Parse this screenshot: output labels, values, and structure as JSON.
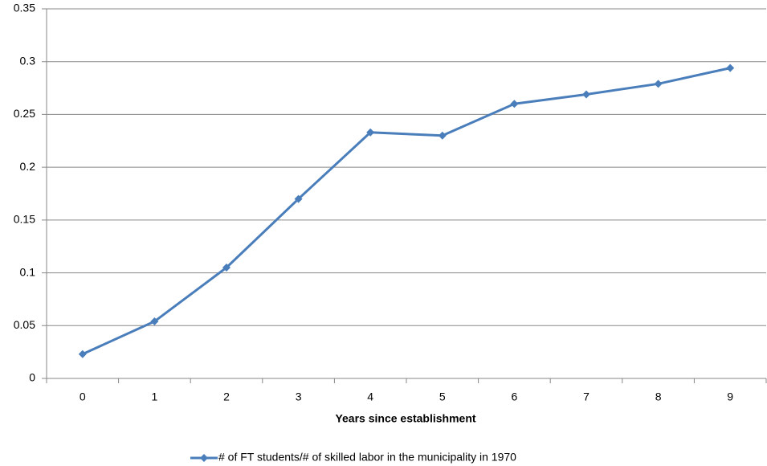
{
  "chart_data": {
    "type": "line",
    "x_label": "Years since establishment",
    "categories": [
      "0",
      "1",
      "2",
      "3",
      "4",
      "5",
      "6",
      "7",
      "8",
      "9"
    ],
    "series": [
      {
        "name": "# of FT students/# of skilled labor in the municipality in 1970",
        "color": "#4a7ebb",
        "values": [
          0.023,
          0.054,
          0.105,
          0.17,
          0.233,
          0.23,
          0.26,
          0.269,
          0.279,
          0.294
        ]
      }
    ],
    "ylim": [
      0,
      0.35
    ],
    "yticks": [
      0,
      0.05,
      0.1,
      0.15,
      0.2,
      0.25,
      0.3,
      0.35
    ],
    "grid": true,
    "legend": "bottom"
  }
}
